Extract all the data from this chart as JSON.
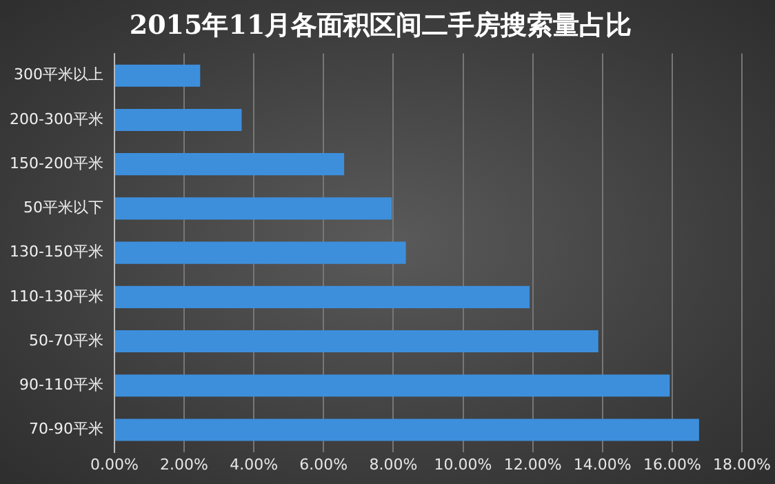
{
  "chart_data": {
    "type": "bar",
    "orientation": "horizontal",
    "title": "2015年11月各面积区间二手房搜索量占比",
    "categories": [
      "300平米以上",
      "200-300平米",
      "150-200平米",
      "50平米以下",
      "130-150平米",
      "110-130平米",
      "50-70平米",
      "90-110平米",
      "70-90平米"
    ],
    "values": [
      2.46,
      3.65,
      6.59,
      7.96,
      8.36,
      11.91,
      13.88,
      15.93,
      16.77
    ],
    "color": "#3d8fdc",
    "xlim": [
      0,
      18
    ],
    "xticks": [
      {
        "value": 0,
        "label": "0.00%"
      },
      {
        "value": 2,
        "label": "2.00%"
      },
      {
        "value": 4,
        "label": "4.00%"
      },
      {
        "value": 6,
        "label": "6.00%"
      },
      {
        "value": 8,
        "label": "8.00%"
      },
      {
        "value": 10,
        "label": "10.00%"
      },
      {
        "value": 12,
        "label": "12.00%"
      },
      {
        "value": 14,
        "label": "14.00%"
      },
      {
        "value": 16,
        "label": "16.00%"
      },
      {
        "value": 18,
        "label": "18.00%"
      }
    ],
    "grid": "x"
  }
}
